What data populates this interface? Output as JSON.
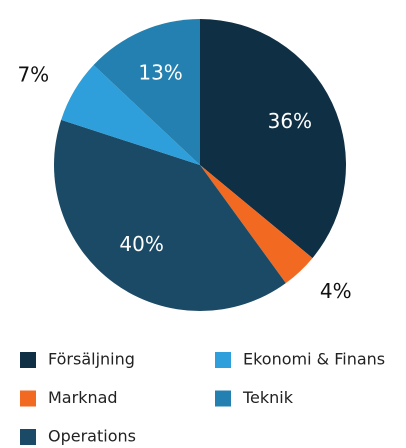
{
  "chart_data": {
    "type": "pie",
    "categories": [
      "Försäljning",
      "Marknad",
      "Operations",
      "Ekonomi & Finans",
      "Teknik"
    ],
    "values": [
      36,
      4,
      40,
      7,
      13
    ],
    "value_labels": [
      "36%",
      "4%",
      "40%",
      "7%",
      "13%"
    ],
    "colors": [
      "#0f2f44",
      "#f26a21",
      "#1b4a66",
      "#2e9fdb",
      "#2380b0"
    ],
    "legend": "bottom"
  }
}
